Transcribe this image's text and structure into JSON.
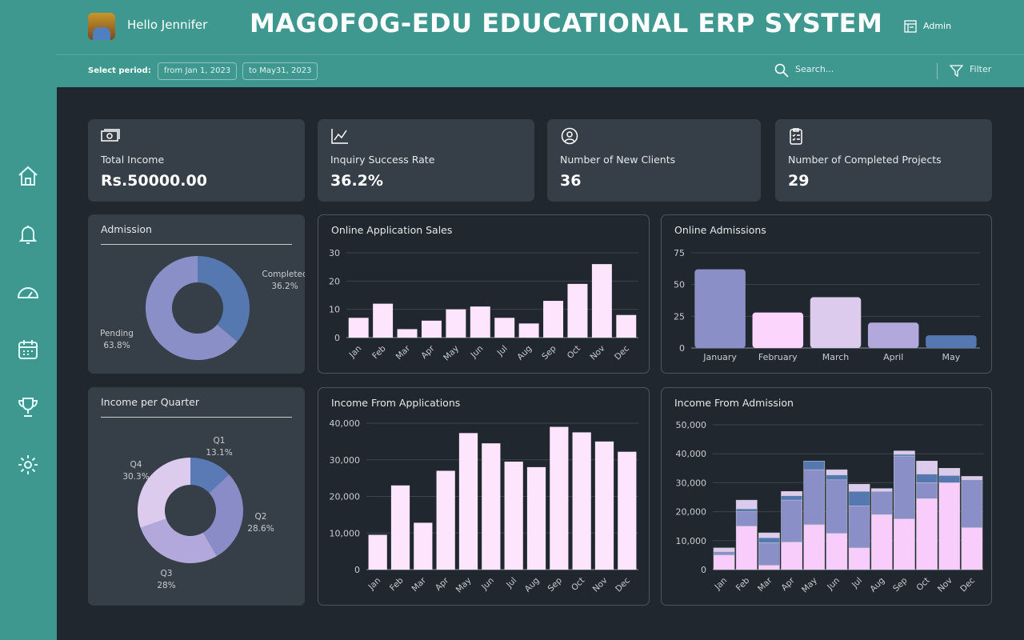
{
  "header": {
    "greeting": "Hello Jennifer",
    "title": "MAGOFOG-EDU EDUCATIONAL ERP SYSTEM",
    "admin": "Admin",
    "select_period": "Select period:",
    "from": "from Jan 1, 2023",
    "to": "to May31, 2023",
    "search_placeholder": "Search...",
    "filter": "Filter"
  },
  "sidebar": [
    "home-icon",
    "bell-icon",
    "dashboard-gauge-icon",
    "calendar-icon",
    "trophy-icon",
    "gear-icon"
  ],
  "kpis": [
    {
      "label": "Total Income",
      "value": "Rs.50000.00",
      "icon": "money-icon"
    },
    {
      "label": "Inquiry Success Rate",
      "value": "36.2%",
      "icon": "line-chart-icon"
    },
    {
      "label": "Number of New Clients",
      "value": "36",
      "icon": "user-circle-icon"
    },
    {
      "label": "Number of Completed Projects",
      "value": "29",
      "icon": "clipboard-icon"
    }
  ],
  "colors": {
    "teal": "#3f9890",
    "pink": "#fbd5fb",
    "blue": "#5578b0",
    "purple": "#8a8fc8",
    "lavender": "#b3a8dc",
    "lilac": "#dccbec"
  },
  "chart_data": [
    {
      "type": "pie",
      "title": "Admission",
      "donut": true,
      "slices": [
        {
          "label": "Completed",
          "value": 36.2,
          "text": "36.2%",
          "color": "#5578b0"
        },
        {
          "label": "Pending",
          "value": 63.8,
          "text": "63.8%",
          "color": "#8a8fc8"
        }
      ]
    },
    {
      "type": "bar",
      "title": "Online Application Sales",
      "categories": [
        "Jan",
        "Feb",
        "Mar",
        "Apr",
        "May",
        "Jun",
        "Jul",
        "Aug",
        "Sep",
        "Oct",
        "Nov",
        "Dec"
      ],
      "values": [
        7,
        12,
        3,
        6,
        10,
        11,
        7,
        5,
        13,
        19,
        26,
        8
      ],
      "ylim": [
        0,
        30
      ],
      "yticks": [
        "0",
        "10",
        "20",
        "30"
      ],
      "grid": true
    },
    {
      "type": "bar",
      "title": "Online Admissions",
      "categories": [
        "January",
        "February",
        "March",
        "April",
        "May"
      ],
      "values": [
        62,
        28,
        40,
        20,
        10
      ],
      "colors": [
        "#8a8fc8",
        "#fbd5fb",
        "#dccbec",
        "#b3a8dc",
        "#5578b0"
      ],
      "ylim": [
        0,
        75
      ],
      "yticks": [
        "0",
        "25",
        "50",
        "75"
      ],
      "grid": true
    },
    {
      "type": "pie",
      "title": "Income per Quarter",
      "donut": true,
      "slices": [
        {
          "label": "Q1",
          "value": 13.1,
          "text": "13.1%",
          "color": "#5a7ab5"
        },
        {
          "label": "Q2",
          "value": 28.6,
          "text": "28.6%",
          "color": "#8a8cc8"
        },
        {
          "label": "Q3",
          "value": 28,
          "text": "28%",
          "color": "#b3a8dc"
        },
        {
          "label": "Q4",
          "value": 30.3,
          "text": "30.3%",
          "color": "#dccbec"
        }
      ]
    },
    {
      "type": "bar",
      "title": "Income From Applications",
      "categories": [
        "Jan",
        "Feb",
        "Mar",
        "Apr",
        "May",
        "Jun",
        "Jul",
        "Aug",
        "Sep",
        "Oct",
        "Nov",
        "Dec"
      ],
      "values": [
        9500,
        23000,
        12800,
        27000,
        37300,
        34500,
        29500,
        28000,
        39000,
        37500,
        35000,
        32200
      ],
      "ylim": [
        0,
        40000
      ],
      "yticks": [
        "0",
        "10,000",
        "20,000",
        "30,000",
        "40,000"
      ],
      "grid": true
    },
    {
      "type": "bar",
      "stacked": true,
      "title": "Income From Admission",
      "categories": [
        "Jan",
        "Feb",
        "Mar",
        "Apr",
        "May",
        "Jun",
        "Jul",
        "Aug",
        "Sep",
        "Oct",
        "Nov",
        "Dec"
      ],
      "ylim": [
        0,
        50000
      ],
      "yticks": [
        "0",
        "10,000",
        "20,000",
        "30,000",
        "40,000",
        "50,000"
      ],
      "grid": true,
      "series": [
        {
          "color": "#f8ccfb",
          "values": [
            5000,
            15000,
            1500,
            9500,
            15500,
            12500,
            7500,
            19000,
            17500,
            24500,
            30000,
            14500
          ]
        },
        {
          "color": "#8a8fc8",
          "values": [
            1200,
            5000,
            7800,
            14500,
            19000,
            18500,
            14500,
            8000,
            21700,
            5500,
            0,
            16500
          ]
        },
        {
          "color": "#5578b0",
          "values": [
            0,
            1000,
            1700,
            1500,
            3000,
            1700,
            5000,
            0,
            600,
            3000,
            2500,
            0
          ]
        },
        {
          "color": "#dccbec",
          "values": [
            1300,
            3000,
            1700,
            1500,
            0,
            1800,
            2500,
            1000,
            1200,
            4500,
            2500,
            1200
          ]
        }
      ]
    }
  ]
}
